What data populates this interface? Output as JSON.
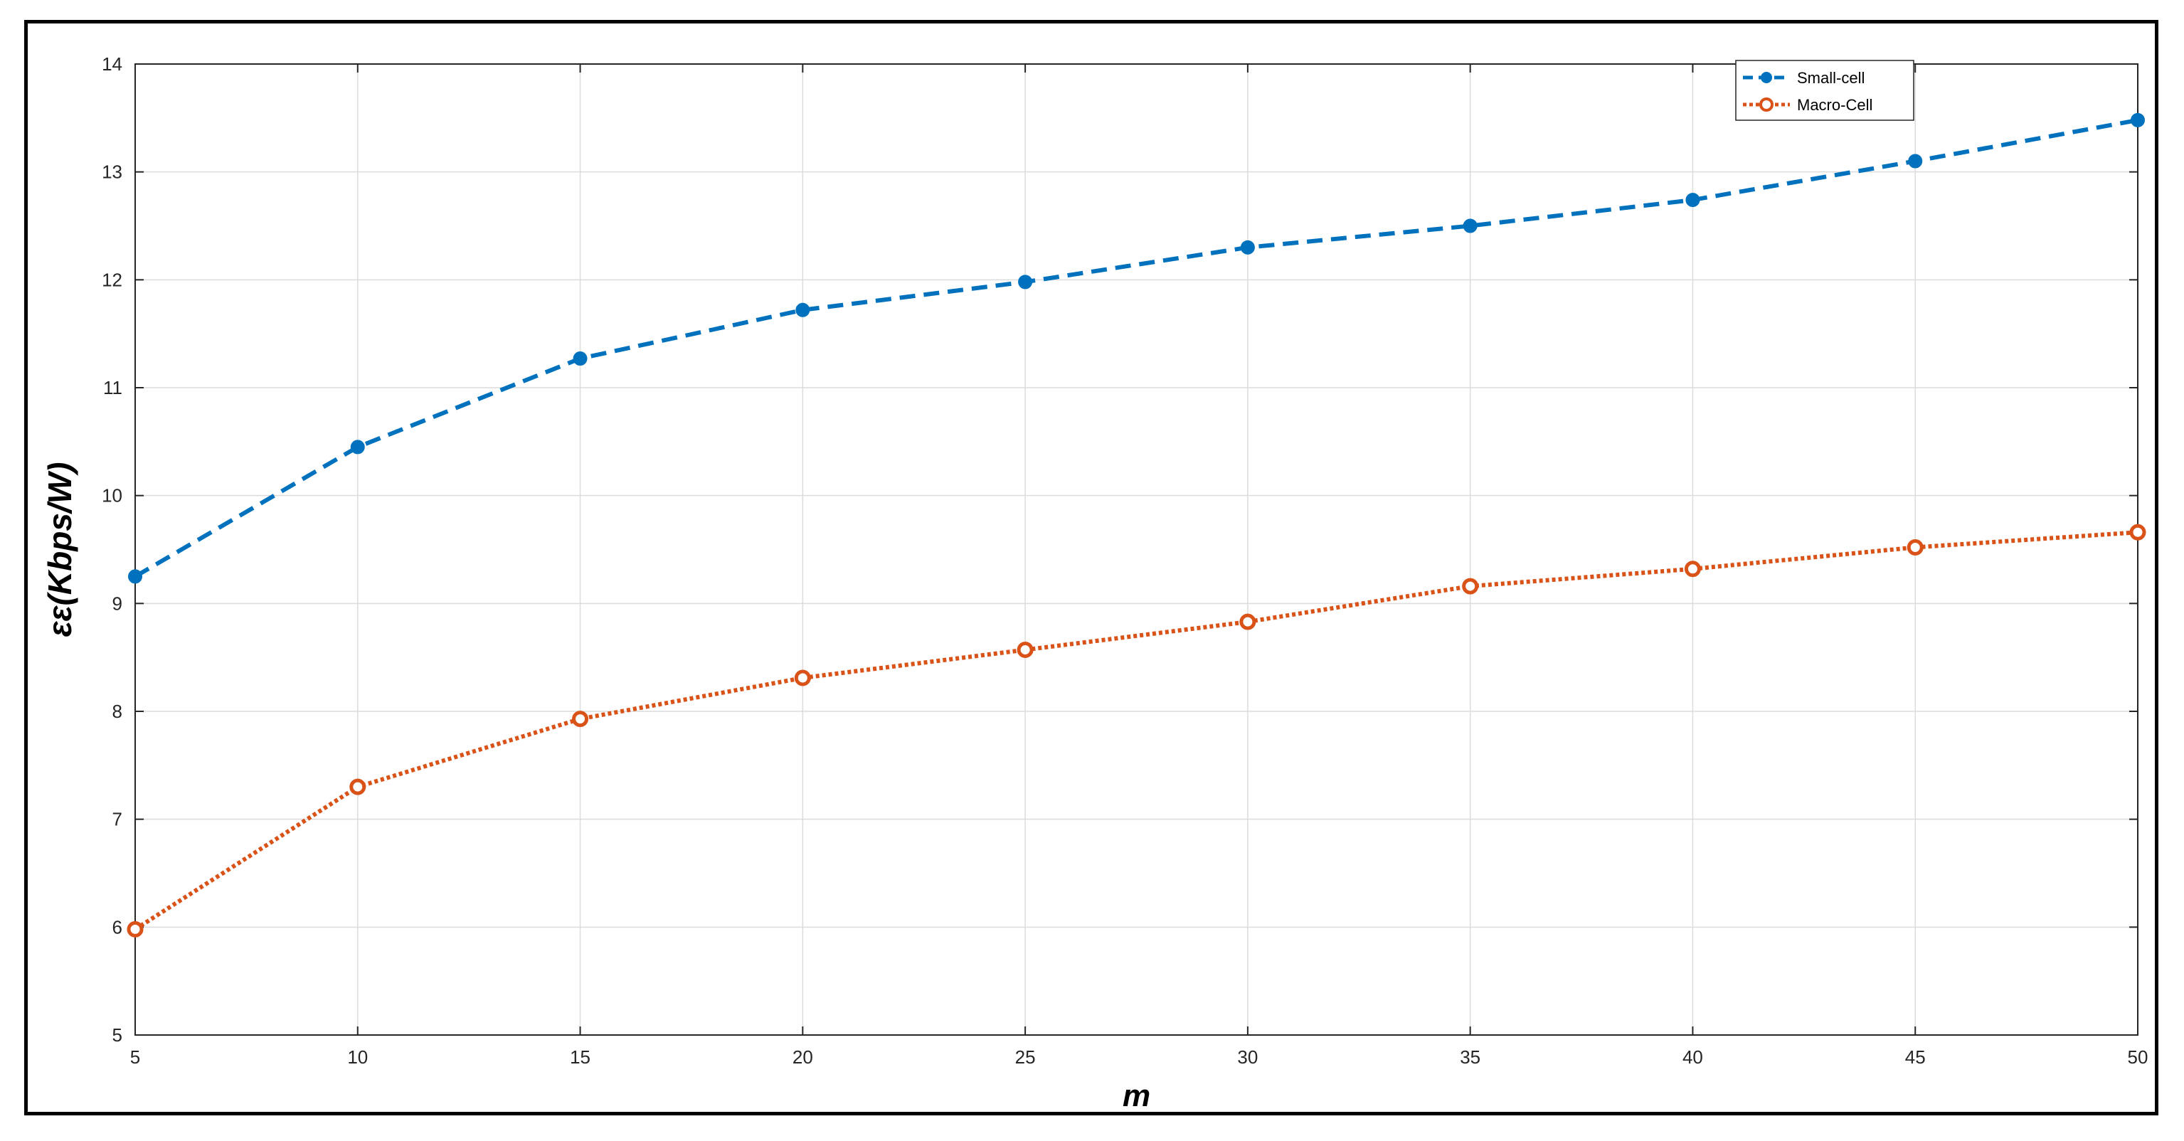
{
  "chart_data": {
    "type": "line",
    "xlabel": "m",
    "ylabel": "εε(Kbps/W)",
    "x": [
      5,
      10,
      15,
      20,
      25,
      30,
      35,
      40,
      45,
      50
    ],
    "xlim": [
      5,
      50
    ],
    "ylim": [
      5,
      14
    ],
    "xticks": [
      "5",
      "10",
      "15",
      "20",
      "25",
      "30",
      "35",
      "40",
      "45",
      "50"
    ],
    "yticks": [
      "5",
      "6",
      "7",
      "8",
      "9",
      "10",
      "11",
      "12",
      "13",
      "14"
    ],
    "grid": true,
    "legend_position": "top-right",
    "series": [
      {
        "name": "Small-cell",
        "values": [
          9.25,
          10.45,
          11.27,
          11.72,
          11.98,
          12.3,
          12.5,
          12.74,
          13.1,
          13.48
        ],
        "color": "#0072BD",
        "line_style": "dashed",
        "marker": "filled-circle"
      },
      {
        "name": "Macro-Cell",
        "values": [
          5.98,
          7.3,
          7.93,
          8.31,
          8.57,
          8.83,
          9.16,
          9.32,
          9.52,
          9.66
        ],
        "color": "#D95319",
        "line_style": "dotted",
        "marker": "open-circle"
      }
    ]
  }
}
